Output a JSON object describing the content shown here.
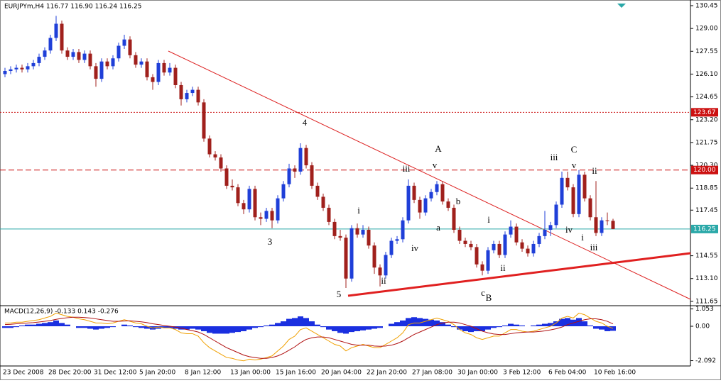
{
  "chart_data": [
    {
      "type": "candlestick",
      "title": "EURJPYm,H4  116.77 116.90 116.24 116.25",
      "x": [
        "23 Dec 2008",
        null,
        null,
        null,
        null,
        null,
        null,
        null,
        "28 Dec 20:00",
        null,
        null,
        null,
        null,
        null,
        null,
        null,
        "31 Dec 12:00",
        null,
        null,
        null,
        null,
        null,
        null,
        null,
        "5 Jan 20:00",
        null,
        null,
        null,
        null,
        null,
        null,
        null,
        "8 Jan 12:00",
        null,
        null,
        null,
        null,
        null,
        null,
        null,
        "13 Jan 00:00",
        null,
        null,
        null,
        null,
        null,
        null,
        null,
        "15 Jan 16:00",
        null,
        null,
        null,
        null,
        null,
        null,
        null,
        "20 Jan 04:00",
        null,
        null,
        null,
        null,
        null,
        null,
        null,
        "22 Jan 20:00",
        null,
        null,
        null,
        null,
        null,
        null,
        null,
        "27 Jan 08:00",
        null,
        null,
        null,
        null,
        null,
        null,
        null,
        "30 Jan 00:00",
        null,
        null,
        null,
        null,
        null,
        null,
        null,
        "3 Feb 12:00",
        null,
        null,
        null,
        null,
        null,
        null,
        null,
        "6 Feb 04:00",
        null,
        null,
        null,
        null,
        null,
        null,
        null,
        "10 Feb 16:00",
        null,
        null,
        null
      ],
      "open": [
        126.1,
        126.3,
        126.4,
        126.5,
        126.4,
        126.6,
        126.8,
        127.2,
        127.6,
        128.4,
        129.3,
        127.6,
        127.2,
        127.5,
        127.0,
        127.4,
        126.6,
        125.8,
        126.9,
        126.6,
        127.1,
        127.9,
        128.3,
        127.3,
        126.7,
        126.9,
        125.9,
        125.6,
        126.8,
        126.2,
        126.5,
        125.4,
        124.5,
        124.9,
        125.1,
        124.3,
        122.0,
        121.0,
        120.8,
        120.1,
        119.0,
        118.9,
        117.9,
        117.5,
        118.8,
        117.0,
        116.9,
        117.4,
        116.8,
        118.2,
        119.1,
        120.1,
        119.9,
        121.4,
        120.3,
        119.0,
        118.3,
        117.6,
        116.7,
        115.8,
        115.7,
        113.1,
        116.3,
        115.9,
        116.2,
        115.2,
        113.8,
        113.3,
        114.6,
        115.5,
        115.6,
        116.8,
        119.0,
        118.1,
        117.3,
        118.2,
        118.6,
        119.1,
        118.0,
        117.6,
        116.2,
        115.5,
        115.3,
        115.1,
        114.0,
        113.6,
        114.9,
        115.3,
        114.6,
        115.9,
        116.4,
        115.4,
        115.0,
        114.7,
        115.3,
        115.8,
        116.2,
        116.5,
        117.8,
        119.5,
        118.9,
        117.2,
        119.7,
        118.2,
        117.0,
        116.0,
        116.8,
        116.77
      ],
      "high": [
        126.5,
        126.6,
        126.7,
        126.7,
        126.8,
        127.0,
        127.4,
        127.8,
        128.6,
        129.8,
        129.5,
        127.8,
        127.7,
        127.7,
        127.6,
        127.6,
        126.8,
        127.1,
        127.1,
        127.3,
        128.1,
        128.6,
        128.5,
        127.5,
        127.1,
        127.1,
        126.1,
        127.0,
        127.0,
        126.8,
        126.7,
        125.6,
        125.1,
        125.3,
        125.3,
        124.5,
        122.2,
        121.2,
        121.0,
        120.3,
        119.4,
        119.1,
        118.1,
        119.0,
        119.0,
        117.3,
        117.6,
        117.6,
        118.4,
        119.3,
        120.4,
        120.3,
        121.7,
        121.6,
        120.5,
        119.2,
        118.5,
        117.8,
        116.9,
        116.2,
        115.9,
        116.5,
        116.6,
        116.5,
        116.4,
        115.4,
        114.0,
        114.8,
        115.7,
        115.8,
        117.0,
        119.4,
        119.2,
        118.3,
        118.4,
        118.8,
        119.3,
        119.3,
        118.2,
        117.8,
        116.4,
        115.7,
        115.5,
        115.3,
        114.2,
        115.1,
        115.5,
        115.5,
        116.1,
        116.8,
        116.6,
        115.6,
        115.2,
        115.5,
        116.0,
        117.4,
        116.7,
        118.0,
        119.9,
        119.9,
        119.1,
        120.0,
        119.9,
        118.4,
        119.3,
        117.0,
        117.3,
        116.9
      ],
      "low": [
        125.9,
        126.1,
        126.2,
        126.2,
        126.2,
        126.4,
        126.6,
        127.0,
        127.4,
        128.2,
        127.4,
        127.0,
        127.0,
        126.8,
        126.8,
        126.4,
        125.3,
        125.6,
        126.4,
        126.4,
        126.9,
        127.7,
        127.1,
        126.5,
        126.5,
        125.7,
        125.1,
        125.4,
        126.0,
        126.0,
        125.2,
        124.1,
        124.3,
        124.7,
        124.1,
        121.8,
        120.8,
        120.6,
        119.9,
        118.8,
        118.7,
        117.7,
        117.2,
        117.3,
        116.8,
        116.5,
        116.7,
        116.3,
        116.6,
        118.0,
        118.9,
        119.5,
        119.7,
        120.1,
        118.8,
        118.1,
        117.4,
        116.5,
        115.6,
        115.5,
        112.5,
        112.9,
        115.7,
        115.7,
        115.0,
        113.4,
        112.6,
        113.1,
        114.4,
        115.3,
        115.4,
        116.6,
        117.9,
        116.9,
        117.1,
        118.0,
        118.4,
        117.8,
        117.4,
        116.0,
        115.3,
        115.1,
        114.9,
        113.8,
        113.3,
        113.4,
        114.7,
        114.4,
        114.4,
        115.7,
        115.2,
        114.8,
        114.5,
        114.5,
        115.1,
        115.6,
        115.8,
        116.3,
        117.6,
        118.7,
        117.0,
        117.0,
        118.0,
        116.8,
        115.8,
        115.8,
        116.5,
        116.24
      ],
      "close": [
        126.3,
        126.4,
        126.5,
        126.4,
        126.6,
        126.8,
        127.2,
        127.6,
        128.4,
        129.3,
        127.6,
        127.2,
        127.5,
        127.0,
        127.4,
        126.6,
        125.8,
        126.9,
        126.6,
        127.1,
        127.9,
        128.3,
        127.3,
        126.7,
        126.9,
        125.9,
        125.6,
        126.8,
        126.2,
        126.5,
        125.4,
        124.5,
        124.9,
        125.1,
        124.3,
        122.0,
        121.0,
        120.8,
        120.1,
        119.0,
        118.9,
        117.9,
        117.5,
        118.8,
        117.0,
        116.9,
        117.4,
        116.8,
        118.2,
        119.1,
        120.1,
        119.9,
        121.4,
        120.3,
        119.0,
        118.3,
        117.6,
        116.7,
        115.8,
        115.7,
        113.1,
        116.3,
        115.9,
        116.2,
        115.2,
        113.8,
        113.3,
        114.6,
        115.5,
        115.6,
        116.8,
        119.0,
        118.1,
        117.3,
        118.2,
        118.6,
        119.1,
        118.0,
        117.6,
        116.2,
        115.5,
        115.3,
        115.1,
        114.0,
        113.6,
        114.9,
        115.3,
        114.6,
        115.9,
        116.4,
        115.4,
        115.0,
        114.7,
        115.3,
        115.8,
        116.2,
        116.5,
        117.8,
        119.5,
        118.9,
        117.2,
        119.7,
        118.2,
        117.0,
        116.0,
        116.8,
        116.77,
        116.25
      ],
      "up_color": "#1f3fd8",
      "down_color": "#a0201c",
      "ylim": [
        111.42,
        130.81
      ],
      "yticks": [
        130.45,
        {
          "value": 129.0,
          "label": "129.00"
        },
        127.55,
        {
          "value": 126.1,
          "label": "126.10"
        },
        124.65,
        {
          "value": 123.2,
          "label": "123.20"
        },
        121.75,
        {
          "value": 120.3,
          "label": "120.30"
        },
        118.85,
        117.45,
        114.55,
        {
          "value": 113.1,
          "label": "113.10"
        },
        111.65
      ],
      "levels": [
        {
          "value": 123.67,
          "color": "#cc1111",
          "style": "dotted"
        },
        {
          "value": 120,
          "label": "120.00",
          "color": "#cc1111",
          "style": "dashed"
        },
        {
          "value": 116.25,
          "color": "#2aa8a8",
          "style": "solid"
        }
      ],
      "annotations": [
        "3",
        "4",
        "5",
        "i",
        "ii",
        "iii",
        "iv",
        "v",
        "A",
        "a",
        "b",
        "i",
        "ii",
        "c",
        "B",
        "iii",
        "iv",
        "C",
        "v",
        "i",
        "ii",
        "iii"
      ]
    },
    {
      "type": "macd",
      "title": "MACD(12,26,9) -0.133 0.143 -0.276",
      "histogram": [
        -0.1,
        -0.1,
        -0.05,
        0.05,
        0.1,
        0.1,
        0.15,
        0.2,
        0.25,
        0.35,
        0.2,
        0.1,
        0.0,
        -0.1,
        -0.1,
        -0.15,
        -0.2,
        -0.15,
        -0.1,
        -0.05,
        0.0,
        0.1,
        0.05,
        -0.05,
        -0.1,
        -0.15,
        -0.2,
        -0.15,
        -0.1,
        -0.1,
        -0.15,
        -0.2,
        -0.2,
        -0.15,
        -0.2,
        -0.3,
        -0.4,
        -0.45,
        -0.45,
        -0.45,
        -0.4,
        -0.35,
        -0.3,
        -0.2,
        -0.1,
        -0.05,
        0.05,
        0.1,
        0.2,
        0.3,
        0.45,
        0.5,
        0.6,
        0.5,
        0.3,
        0.1,
        -0.05,
        -0.2,
        -0.3,
        -0.4,
        -0.45,
        -0.35,
        -0.3,
        -0.25,
        -0.2,
        -0.15,
        -0.1,
        0.0,
        0.15,
        0.25,
        0.35,
        0.5,
        0.55,
        0.5,
        0.45,
        0.4,
        0.35,
        0.25,
        0.1,
        -0.05,
        -0.2,
        -0.3,
        -0.35,
        -0.3,
        -0.3,
        -0.2,
        -0.1,
        -0.05,
        0.05,
        0.15,
        0.1,
        0.05,
        0.0,
        0.05,
        0.1,
        0.15,
        0.2,
        0.3,
        0.45,
        0.5,
        0.4,
        0.5,
        0.3,
        0.05,
        -0.15,
        -0.2,
        -0.3,
        -0.276
      ],
      "main": [
        0.2,
        0.2,
        0.25,
        0.25,
        0.3,
        0.35,
        0.4,
        0.5,
        0.6,
        0.8,
        0.7,
        0.6,
        0.55,
        0.45,
        0.4,
        0.3,
        0.2,
        0.2,
        0.15,
        0.2,
        0.3,
        0.4,
        0.3,
        0.2,
        0.15,
        0.0,
        -0.1,
        -0.05,
        -0.1,
        -0.1,
        -0.2,
        -0.4,
        -0.45,
        -0.45,
        -0.6,
        -1.0,
        -1.3,
        -1.5,
        -1.7,
        -1.9,
        -1.95,
        -2.05,
        -2.1,
        -2.0,
        -2.05,
        -2.0,
        -1.9,
        -1.8,
        -1.5,
        -1.2,
        -0.8,
        -0.6,
        -0.2,
        -0.1,
        -0.3,
        -0.5,
        -0.7,
        -0.9,
        -1.1,
        -1.2,
        -1.5,
        -1.3,
        -1.2,
        -1.1,
        -1.2,
        -1.3,
        -1.3,
        -1.1,
        -0.9,
        -0.7,
        -0.4,
        0.1,
        0.2,
        0.2,
        0.3,
        0.4,
        0.5,
        0.4,
        0.3,
        0.1,
        -0.2,
        -0.4,
        -0.5,
        -0.7,
        -0.8,
        -0.7,
        -0.6,
        -0.6,
        -0.4,
        -0.2,
        -0.2,
        -0.3,
        -0.35,
        -0.3,
        -0.2,
        -0.1,
        0.0,
        0.2,
        0.5,
        0.6,
        0.5,
        0.8,
        0.7,
        0.5,
        0.3,
        0.2,
        0.0,
        -0.133
      ],
      "signal": [
        0.1,
        0.12,
        0.15,
        0.17,
        0.2,
        0.22,
        0.26,
        0.3,
        0.35,
        0.42,
        0.48,
        0.52,
        0.55,
        0.55,
        0.53,
        0.5,
        0.45,
        0.4,
        0.35,
        0.3,
        0.3,
        0.32,
        0.33,
        0.3,
        0.27,
        0.22,
        0.15,
        0.1,
        0.05,
        0.0,
        -0.05,
        -0.12,
        -0.2,
        -0.27,
        -0.35,
        -0.5,
        -0.7,
        -0.9,
        -1.1,
        -1.3,
        -1.45,
        -1.6,
        -1.75,
        -1.85,
        -1.9,
        -1.95,
        -1.95,
        -1.9,
        -1.8,
        -1.65,
        -1.45,
        -1.25,
        -1.0,
        -0.8,
        -0.7,
        -0.65,
        -0.65,
        -0.7,
        -0.8,
        -0.9,
        -1.0,
        -1.1,
        -1.15,
        -1.15,
        -1.15,
        -1.2,
        -1.22,
        -1.2,
        -1.15,
        -1.05,
        -0.9,
        -0.7,
        -0.5,
        -0.35,
        -0.2,
        -0.05,
        0.1,
        0.2,
        0.25,
        0.25,
        0.2,
        0.1,
        0.0,
        -0.15,
        -0.3,
        -0.4,
        -0.47,
        -0.5,
        -0.5,
        -0.45,
        -0.4,
        -0.37,
        -0.35,
        -0.35,
        -0.32,
        -0.28,
        -0.22,
        -0.15,
        -0.05,
        0.1,
        0.2,
        0.3,
        0.4,
        0.45,
        0.45,
        0.4,
        0.3,
        0.143
      ],
      "histogram_color": "#1a2fe0",
      "main_color": "#f0a000",
      "signal_color": "#b01010",
      "ylim": [
        -2.414,
        1.207
      ],
      "yticks": [
        1.053,
        {
          "value": 0,
          "label": "0.00"
        },
        -2.092
      ]
    }
  ]
}
